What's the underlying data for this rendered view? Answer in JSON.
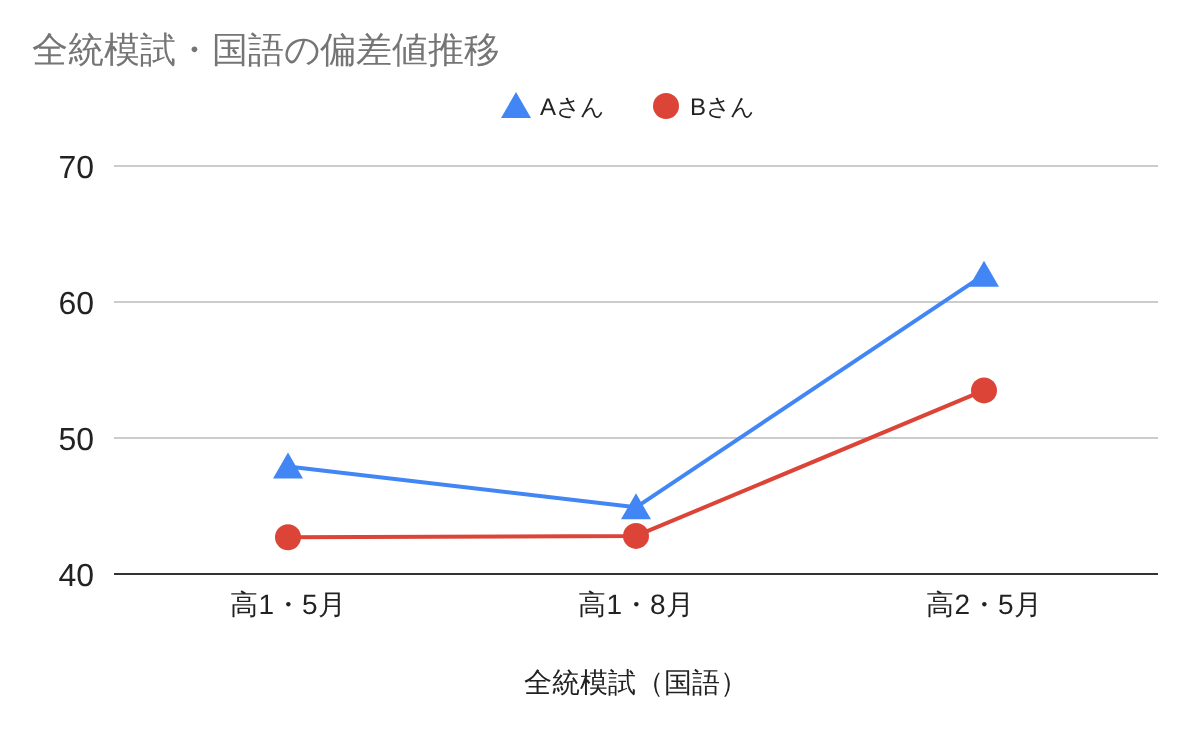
{
  "chart_data": {
    "type": "line",
    "title": "全統模試・国語の偏差値推移",
    "xlabel": "全統模試（国語）",
    "categories": [
      "高1・5月",
      "高1・8月",
      "高2・5月"
    ],
    "series": [
      {
        "name": "Aさん",
        "color": "#4285f4",
        "marker": "triangle",
        "values": [
          47.9,
          44.9,
          62.0
        ]
      },
      {
        "name": "Bさん",
        "color": "#db4437",
        "marker": "circle",
        "values": [
          42.7,
          42.8,
          53.5
        ]
      }
    ],
    "ylim": [
      40,
      70
    ],
    "yticks": [
      40,
      50,
      60,
      70
    ],
    "grid": "y",
    "legend": "top",
    "line_style": "solid"
  }
}
